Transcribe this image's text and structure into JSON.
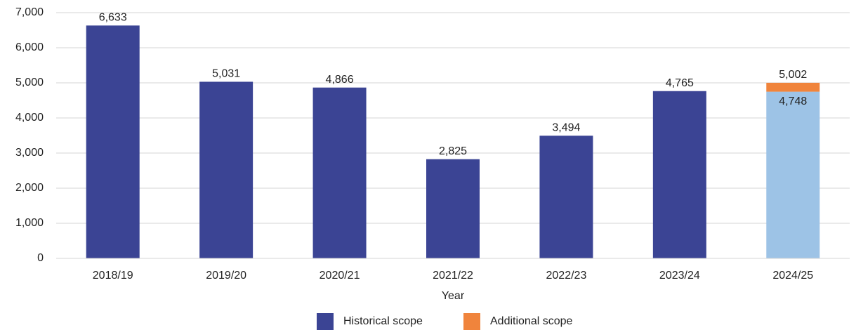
{
  "chart_data": {
    "type": "bar",
    "stacked": true,
    "x_label": "Year",
    "categories": [
      "2018/19",
      "2019/20",
      "2020/21",
      "2021/22",
      "2022/23",
      "2023/24",
      "2024/25"
    ],
    "series": [
      {
        "name": "Historical scope",
        "color": "#3b4494",
        "point_colors": [
          null,
          null,
          null,
          null,
          null,
          null,
          "#9dc3e6"
        ],
        "values": [
          6633,
          5031,
          4866,
          2825,
          3494,
          4765,
          4748
        ],
        "value_labels": [
          "6,633",
          "5,031",
          "4,866",
          "2,825",
          "3,494",
          "4,765",
          "4,748"
        ]
      },
      {
        "name": "Additional scope",
        "color": "#f0843c",
        "values": [
          null,
          null,
          null,
          null,
          null,
          null,
          254
        ]
      }
    ],
    "stack_total": {
      "category": "2024/25",
      "value": 5002,
      "label": "5,002"
    },
    "ylim": [
      0,
      7000
    ],
    "yticks": [
      0,
      {
        "value": 1000,
        "label": "1,000"
      },
      {
        "value": 2000,
        "label": "2,000"
      },
      {
        "value": 3000,
        "label": "3,000"
      },
      {
        "value": 4000,
        "label": "4,000"
      },
      {
        "value": 5000,
        "label": "5,000"
      },
      {
        "value": 6000,
        "label": "6,000"
      },
      {
        "value": 7000,
        "label": "7,000"
      }
    ],
    "grid": true,
    "legend": "bottom"
  }
}
